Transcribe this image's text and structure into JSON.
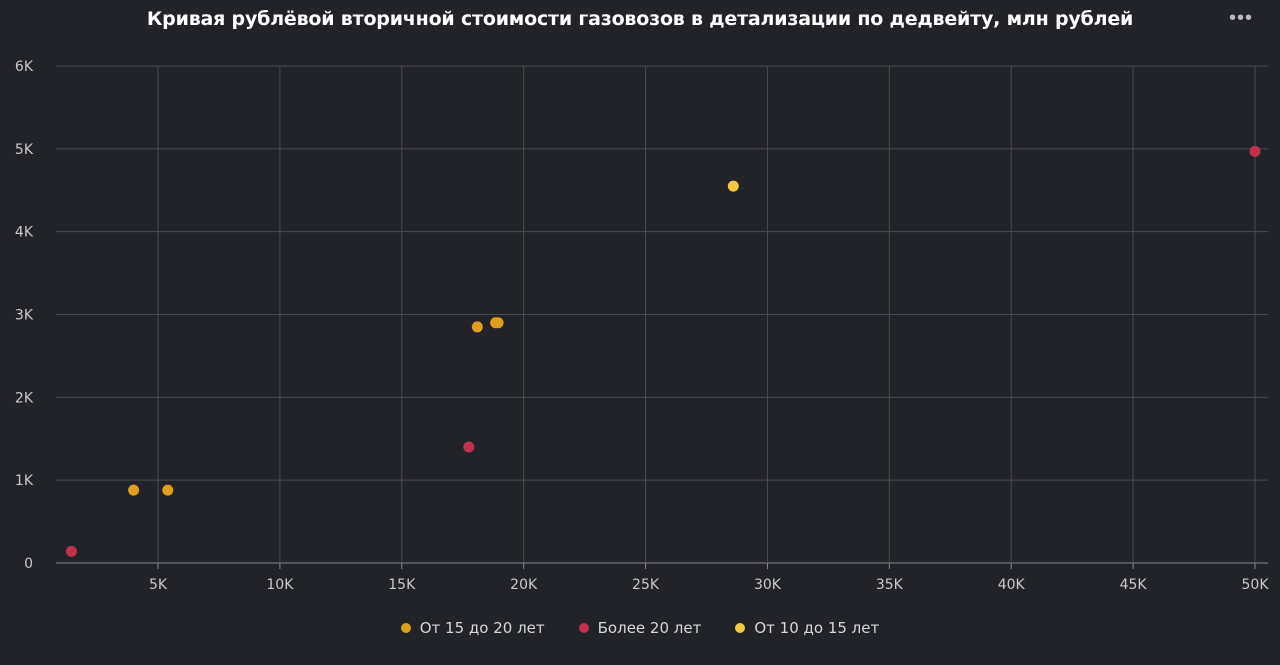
{
  "header": {
    "title": "Кривая рублёвой вторичной стоимости газовозов в детализации по дедвейту, млн рублей",
    "menu_icon": "more-horizontal-icon",
    "menu_glyph": "•••"
  },
  "colors": {
    "background": "#222328",
    "grid": "#4a4b52",
    "tick_text": "#c8c9ce"
  },
  "chart_data": {
    "type": "scatter",
    "title": "Кривая рублёвой вторичной стоимости газовозов в детализации по дедвейту, млн рублей",
    "xlabel": "",
    "ylabel": "",
    "xlim": [
      1000,
      50500
    ],
    "ylim": [
      0,
      6000
    ],
    "x_ticks": [
      5000,
      10000,
      15000,
      20000,
      25000,
      30000,
      35000,
      40000,
      45000,
      50000
    ],
    "x_tick_labels": [
      "5K",
      "10K",
      "15K",
      "20K",
      "25K",
      "30K",
      "35K",
      "40K",
      "45K",
      "50K"
    ],
    "y_ticks": [
      0,
      1000,
      2000,
      3000,
      4000,
      5000,
      6000
    ],
    "y_tick_labels": [
      "0",
      "1K",
      "2K",
      "3K",
      "4K",
      "5K",
      "6K"
    ],
    "grid": true,
    "legend_position": "bottom",
    "series": [
      {
        "name": "От 15 до 20 лет",
        "color": "#e09e1f",
        "points": [
          {
            "x": 4000,
            "y": 880
          },
          {
            "x": 5400,
            "y": 880
          },
          {
            "x": 18100,
            "y": 2850
          },
          {
            "x": 18850,
            "y": 2900
          },
          {
            "x": 18950,
            "y": 2900
          }
        ]
      },
      {
        "name": "Более 20 лет",
        "color": "#c2304d",
        "points": [
          {
            "x": 1450,
            "y": 140
          },
          {
            "x": 17750,
            "y": 1400
          },
          {
            "x": 50000,
            "y": 4970
          }
        ]
      },
      {
        "name": "От 10 до 15 лет",
        "color": "#f3c93d",
        "points": [
          {
            "x": 28600,
            "y": 4550
          }
        ]
      }
    ]
  }
}
